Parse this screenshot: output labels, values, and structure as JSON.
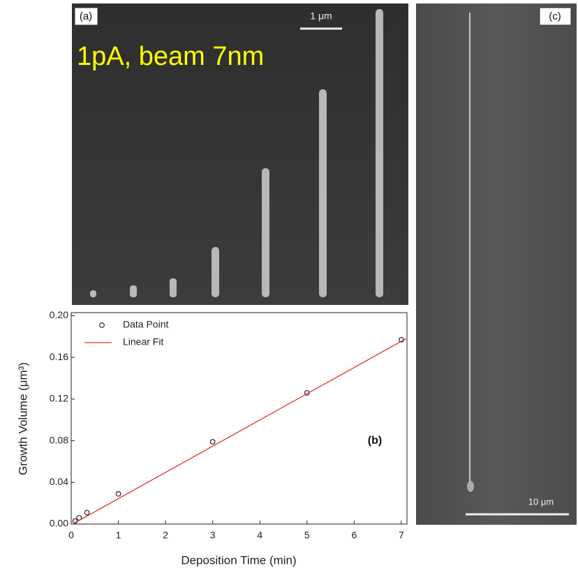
{
  "panels": {
    "a_label": "(a)",
    "a_scale": "1 μm",
    "a_note": "1pA, beam 7nm",
    "c_label": "(c)",
    "c_scale": "10 μm"
  },
  "chart_data": {
    "type": "scatter",
    "annotation": "(b)",
    "x_label": "Deposition Time (min)",
    "y_label": "Growth Volume (μm³)",
    "xlim": [
      0,
      7.12
    ],
    "ylim": [
      0,
      0.203
    ],
    "xticks": [
      0,
      1,
      2,
      3,
      4,
      5,
      6,
      7
    ],
    "yticks": [
      {
        "value": 0,
        "label": "0.00"
      },
      {
        "value": 0.04,
        "label": "0.04"
      },
      {
        "value": 0.08,
        "label": "0.08"
      },
      {
        "value": 0.12,
        "label": "0.12"
      },
      {
        "value": 0.16,
        "label": "0.16"
      },
      {
        "value": 0.2,
        "label": "0.20"
      }
    ],
    "legend": "upper left",
    "series": [
      {
        "name": "Data Point",
        "color": "#333333",
        "marker": "circle",
        "x": [
          0.083,
          0.167,
          0.333,
          1,
          3,
          5,
          7
        ],
        "values": [
          0.003,
          0.006,
          0.011,
          0.029,
          0.079,
          0.126,
          0.177
        ]
      },
      {
        "name": "Linear Fit",
        "color": "#e03030",
        "marker": "line",
        "x": [
          0.05,
          7.1
        ],
        "values": [
          0.0005,
          0.178
        ]
      }
    ]
  }
}
